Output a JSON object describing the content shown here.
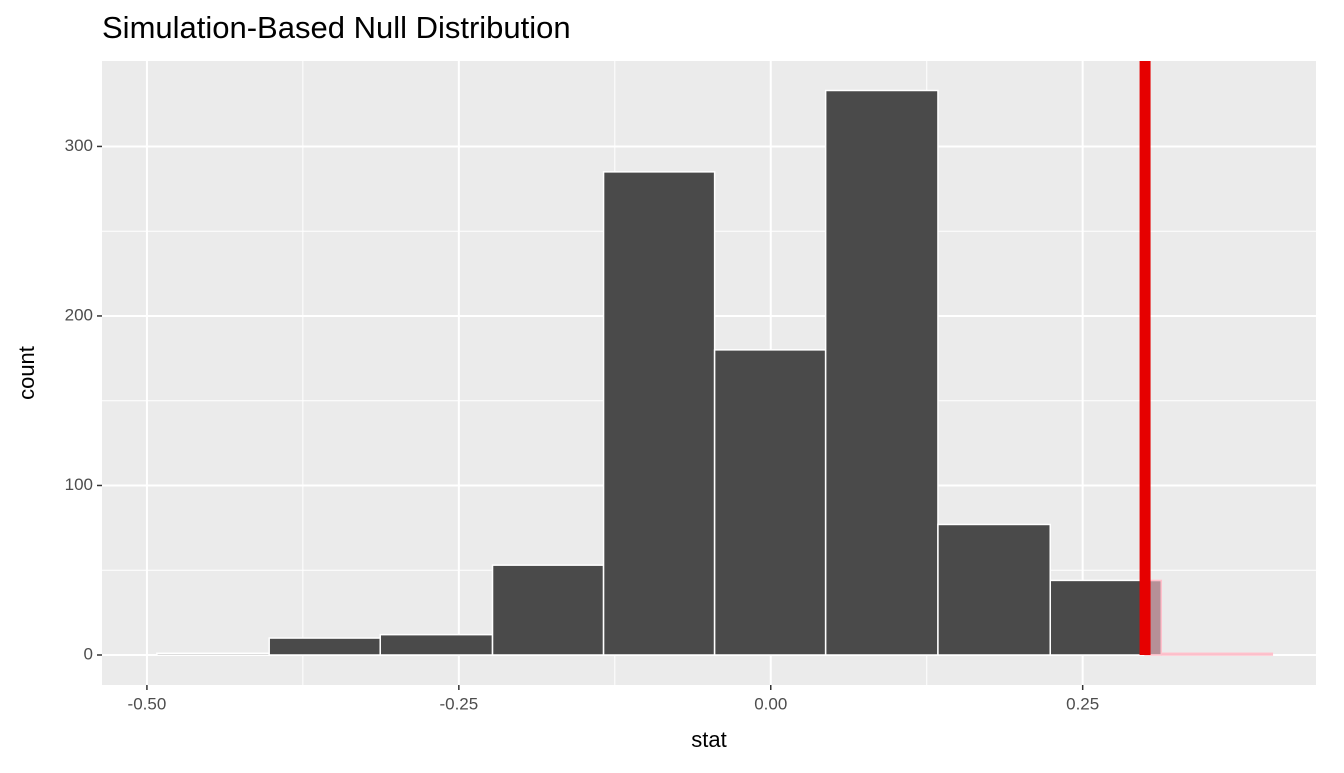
{
  "chart_data": {
    "type": "histogram",
    "title": "Simulation-Based Null Distribution",
    "x_label": "stat",
    "y_label": "count",
    "bins": [
      -0.492,
      -0.402,
      -0.313,
      -0.223,
      -0.134,
      -0.045,
      0.044,
      0.134,
      0.224,
      0.313,
      0.402
    ],
    "counts": [
      1,
      10,
      12,
      53,
      285,
      180,
      333,
      77,
      44,
      1
    ],
    "color": "#4a4a4a",
    "obs_stat": 0.3,
    "obs_color": "#e60000",
    "shade_direction": "right",
    "shade_color": "#ffc0cb",
    "xlim": [
      -0.536,
      0.437
    ],
    "ylim": [
      -17.7,
      350.4
    ],
    "xticks": [
      {
        "value": -0.5,
        "label": "-0.50"
      },
      {
        "value": -0.25,
        "label": "-0.25"
      },
      {
        "value": 0,
        "label": "0.00"
      },
      {
        "value": 0.25,
        "label": "0.25"
      }
    ],
    "yticks": [
      0,
      100,
      200,
      300
    ],
    "grid": true
  }
}
